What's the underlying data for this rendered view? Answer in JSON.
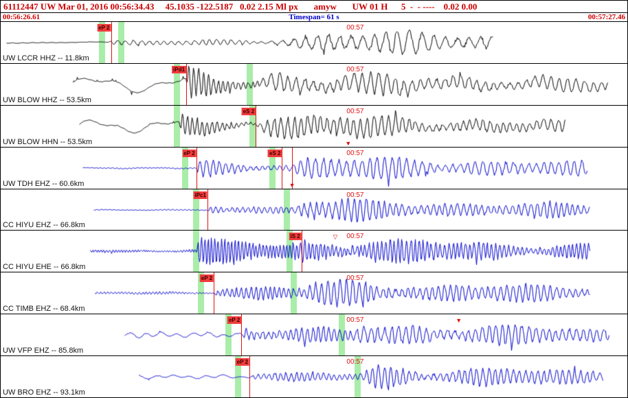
{
  "header": {
    "line1": "61112447 UW Mar 01, 2016 00:56:34.43     45.1035 -122.5187   0.02 2.15 Ml px       amyw       UW 01 H      5  -  - ----    0.02 0.00",
    "start_time": "00:56:26.61",
    "timespan": "Timespan=  61 s",
    "end_time": "00:57:27.46"
  },
  "minute": {
    "label": "00:57",
    "x": 0.552
  },
  "colors": {
    "header_red": "#cc0000",
    "header_blue": "#0000cc",
    "pick_red": "#dd1111",
    "band_green": "#a9eda9",
    "flag_bg": "#f03c3c",
    "flag_fg": "#3a0000",
    "trace_black": "#000000",
    "trace_blue": "#0000cc"
  },
  "panels": [
    {
      "label": "UW LCCR HHZ -- 11.8km",
      "color": "#000000",
      "bands": [
        0.157,
        0.188
      ],
      "picks": [
        {
          "label": "eP 2",
          "x": 0.176
        }
      ],
      "markers": [],
      "wave": {
        "start": 0.009,
        "end": 0.785,
        "base": 0.4,
        "basePeriod": 14,
        "lfA": 0.8,
        "lfP": 200,
        "lfPost": 1,
        "p": 0.17,
        "pAmp": 5,
        "pPeriod": 11,
        "pDecay": 0.6,
        "pAttack": 8,
        "s": 0.4,
        "sAmp": 23,
        "sPeriod": 17,
        "sDecay": 0.9,
        "sAttack": 120,
        "seed": 11
      }
    },
    {
      "label": "UW BLOW HHZ -- 53.5km",
      "color": "#000000",
      "bands": [
        0.276,
        0.392
      ],
      "picks": [
        {
          "label": "iPd1",
          "x": 0.296
        }
      ],
      "markers": [],
      "wave": {
        "start": 0.115,
        "end": 0.968,
        "base": 0.5,
        "basePeriod": 10,
        "lfA": 11,
        "lfP": 130,
        "lfPost": 0.45,
        "p": 0.296,
        "pAmp": 25,
        "pPeriod": 7,
        "pDecay": 0.1,
        "pAttack": 3,
        "s": 0.4,
        "sAmp": 20,
        "sPeriod": 12,
        "sDecay": 0.8,
        "sAttack": 30,
        "seed": 22
      }
    },
    {
      "label": "UW BLOW HHN -- 53.5km",
      "color": "#000000",
      "bands": [
        0.276,
        0.397
      ],
      "picks": [
        {
          "label": "eS 2",
          "x": 0.407
        }
      ],
      "markers": [
        {
          "shape": "filled",
          "x": 0.5547,
          "pos": "bottom",
          "line": false
        }
      ],
      "wave": {
        "start": 0.125,
        "end": 0.9,
        "base": 0.5,
        "basePeriod": 10,
        "lfA": 9,
        "lfP": 110,
        "lfPost": 0.4,
        "p": 0.285,
        "pAmp": 16,
        "pPeriod": 7,
        "pDecay": 0.12,
        "pAttack": 3,
        "s": 0.405,
        "sAmp": 24,
        "sPeriod": 10,
        "sDecay": 0.5,
        "sAttack": 20,
        "seed": 33
      }
    },
    {
      "label": "UW TDH EHZ -- 60.6km",
      "color": "#0000cc",
      "bands": [
        0.289,
        0.429
      ],
      "picks": [
        {
          "label": "eP 2",
          "x": 0.312
        },
        {
          "label": "eS 2",
          "x": 0.449
        }
      ],
      "markers": [
        {
          "shape": "filled",
          "x": 0.465,
          "pos": "bottom",
          "line": true
        }
      ],
      "wave": {
        "start": 0.131,
        "end": 0.935,
        "base": 0.8,
        "basePeriod": 6,
        "lfA": 0.6,
        "lfP": 90,
        "lfPost": 0.5,
        "p": 0.312,
        "pAmp": 13,
        "pPeriod": 9,
        "pDecay": 0.25,
        "pAttack": 4,
        "s": 0.449,
        "sAmp": 21,
        "sPeriod": 11,
        "sDecay": 0.8,
        "sAttack": 40,
        "seed": 44
      }
    },
    {
      "label": "CC HIYU EHZ -- 66.8km",
      "color": "#0000cc",
      "bands": [
        0.307,
        0.452
      ],
      "picks": [
        {
          "label": "iPc1",
          "x": 0.33
        }
      ],
      "markers": [],
      "wave": {
        "start": 0.148,
        "end": 0.94,
        "base": 0.7,
        "basePeriod": 6,
        "lfA": 0.4,
        "lfP": 100,
        "lfPost": 0.5,
        "p": 0.33,
        "pAmp": 10,
        "pPeriod": 8,
        "pDecay": 0.3,
        "pAttack": 4,
        "s": 0.457,
        "sAmp": 20,
        "sPeriod": 9,
        "sDecay": 0.7,
        "sAttack": 25,
        "seed": 55
      }
    },
    {
      "label": "CC HIYU EHE -- 66.8km",
      "color": "#0000cc",
      "bands": [
        0.307,
        0.456
      ],
      "picks": [
        {
          "label": "iS 2",
          "x": 0.48
        }
      ],
      "markers": [
        {
          "shape": "open",
          "x": 0.534,
          "pos": "top",
          "line": false
        }
      ],
      "wave": {
        "start": 0.142,
        "end": 0.94,
        "base": 2.8,
        "basePeriod": 4,
        "lfA": 0.5,
        "lfP": 80,
        "lfPost": 0.5,
        "p": 0.312,
        "pAmp": 21,
        "pPeriod": 5,
        "pDecay": 0.5,
        "pAttack": 3,
        "s": 0.461,
        "sAmp": 23,
        "sPeriod": 6,
        "sDecay": 0.9,
        "sAttack": 20,
        "seed": 66
      }
    },
    {
      "label": "CC TIMB EHZ -- 68.4km",
      "color": "#0000cc",
      "bands": [
        0.315,
        0.463
      ],
      "picks": [
        {
          "label": "eP 2",
          "x": 0.34
        }
      ],
      "markers": [],
      "wave": {
        "start": 0.15,
        "end": 0.94,
        "base": 2.0,
        "basePeriod": 5,
        "lfA": 0.5,
        "lfP": 90,
        "lfPost": 0.5,
        "p": 0.34,
        "pAmp": 15,
        "pPeriod": 7,
        "pDecay": 0.35,
        "pAttack": 4,
        "s": 0.468,
        "sAmp": 22,
        "sPeriod": 9,
        "sDecay": 0.8,
        "sAttack": 30,
        "seed": 77
      }
    },
    {
      "label": "UW VFP EHZ -- 85.8km",
      "color": "#0000cc",
      "bands": [
        0.359,
        0.54
      ],
      "picks": [
        {
          "label": "eP 2",
          "x": 0.384
        }
      ],
      "markers": [
        {
          "shape": "filled",
          "x": 0.731,
          "pos": "top",
          "line": false
        }
      ],
      "wave": {
        "start": 0.197,
        "end": 0.97,
        "base": 3.5,
        "basePeriod": 22,
        "lfA": 2,
        "lfP": 60,
        "lfPost": 0.5,
        "p": 0.384,
        "pAmp": 15,
        "pPeriod": 8,
        "pDecay": 0.4,
        "pAttack": 4,
        "s": 0.545,
        "sAmp": 21,
        "sPeriod": 10,
        "sDecay": 0.8,
        "sAttack": 30,
        "seed": 88
      }
    },
    {
      "label": "UW BRO EHZ -- 93.1km",
      "color": "#0000cc",
      "bands": [
        0.374,
        0.565
      ],
      "picks": [
        {
          "label": "eP 2",
          "x": 0.397
        }
      ],
      "markers": [],
      "wave": {
        "start": 0.22,
        "end": 0.96,
        "base": 2.5,
        "basePeriod": 25,
        "lfA": 1.5,
        "lfP": 70,
        "lfPost": 0.5,
        "p": 0.397,
        "pAmp": 9,
        "pPeriod": 8,
        "pDecay": 0.4,
        "pAttack": 4,
        "s": 0.569,
        "sAmp": 20,
        "sPeriod": 9,
        "sDecay": 0.7,
        "sAttack": 25,
        "seed": 99
      }
    }
  ]
}
